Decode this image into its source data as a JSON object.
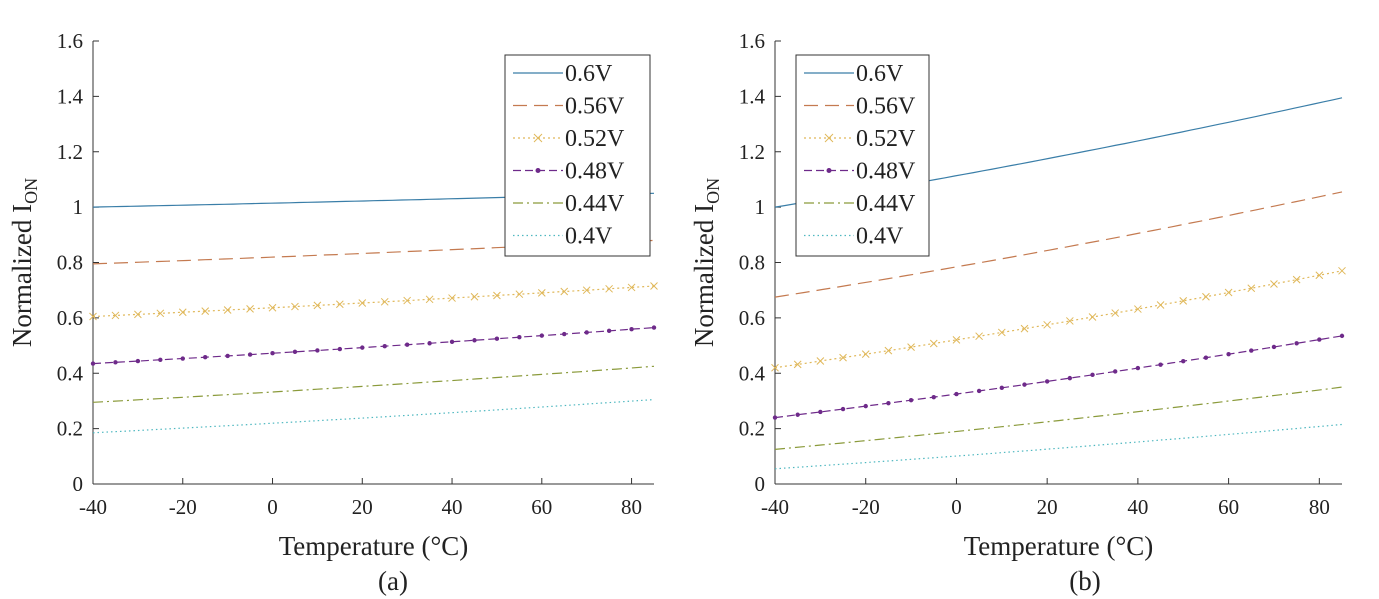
{
  "chart_data": [
    {
      "type": "line",
      "caption": "(a)",
      "xlabel": "Temperature (°C)",
      "ylabel": "Normalized I",
      "ylabel_subscript": "ON",
      "xlim": [
        -40,
        85
      ],
      "ylim": [
        0,
        1.6
      ],
      "xticks": [
        "-40",
        "-20",
        "0",
        "20",
        "40",
        "60",
        "80"
      ],
      "yticks": [
        "0",
        "0.2",
        "0.4",
        "0.6",
        "0.8",
        "1",
        "1.2",
        "1.4",
        "1.6"
      ],
      "grid": false,
      "legend_position": "top-right",
      "x": [
        -40,
        -35,
        -30,
        -25,
        -20,
        -15,
        -10,
        -5,
        0,
        5,
        10,
        15,
        20,
        25,
        30,
        35,
        40,
        45,
        50,
        55,
        60,
        65,
        70,
        75,
        80,
        85
      ],
      "series": [
        {
          "name": "0.6V",
          "start": 1.0,
          "end": 1.05
        },
        {
          "name": "0.56V",
          "start": 0.795,
          "end": 0.88
        },
        {
          "name": "0.52V",
          "start": 0.605,
          "end": 0.715
        },
        {
          "name": "0.48V",
          "start": 0.435,
          "end": 0.565
        },
        {
          "name": "0.44V",
          "start": 0.295,
          "end": 0.425
        },
        {
          "name": "0.4V",
          "start": 0.185,
          "end": 0.305
        }
      ]
    },
    {
      "type": "line",
      "caption": "(b)",
      "xlabel": "Temperature (°C)",
      "ylabel": "Normalized I",
      "ylabel_subscript": "ON",
      "xlim": [
        -40,
        85
      ],
      "ylim": [
        0,
        1.6
      ],
      "xticks": [
        "-40",
        "-20",
        "0",
        "20",
        "40",
        "60",
        "80"
      ],
      "yticks": [
        "0",
        "0.2",
        "0.4",
        "0.6",
        "0.8",
        "1",
        "1.2",
        "1.4",
        "1.6"
      ],
      "grid": false,
      "legend_position": "top-left",
      "x": [
        -40,
        -35,
        -30,
        -25,
        -20,
        -15,
        -10,
        -5,
        0,
        5,
        10,
        15,
        20,
        25,
        30,
        35,
        40,
        45,
        50,
        55,
        60,
        65,
        70,
        75,
        80,
        85
      ],
      "series": [
        {
          "name": "0.6V",
          "start": 1.0,
          "end": 1.395
        },
        {
          "name": "0.56V",
          "start": 0.675,
          "end": 1.055
        },
        {
          "name": "0.52V",
          "start": 0.42,
          "end": 0.77
        },
        {
          "name": "0.48V",
          "start": 0.24,
          "end": 0.535
        },
        {
          "name": "0.44V",
          "start": 0.125,
          "end": 0.35
        },
        {
          "name": "0.4V",
          "start": 0.055,
          "end": 0.215
        }
      ]
    }
  ],
  "style": {
    "axis_color": "#333333",
    "series_colors": [
      "#3a7ea8",
      "#c47a50",
      "#e0b85a",
      "#6e2a8a",
      "#8a9a3a",
      "#4fb8c0"
    ],
    "series_dashes": [
      "",
      "14 7",
      "2 3",
      "8 4",
      "10 4 2 4",
      "1.5 3"
    ],
    "series_markers": [
      "none",
      "none",
      "x",
      "dot",
      "none",
      "none"
    ]
  }
}
